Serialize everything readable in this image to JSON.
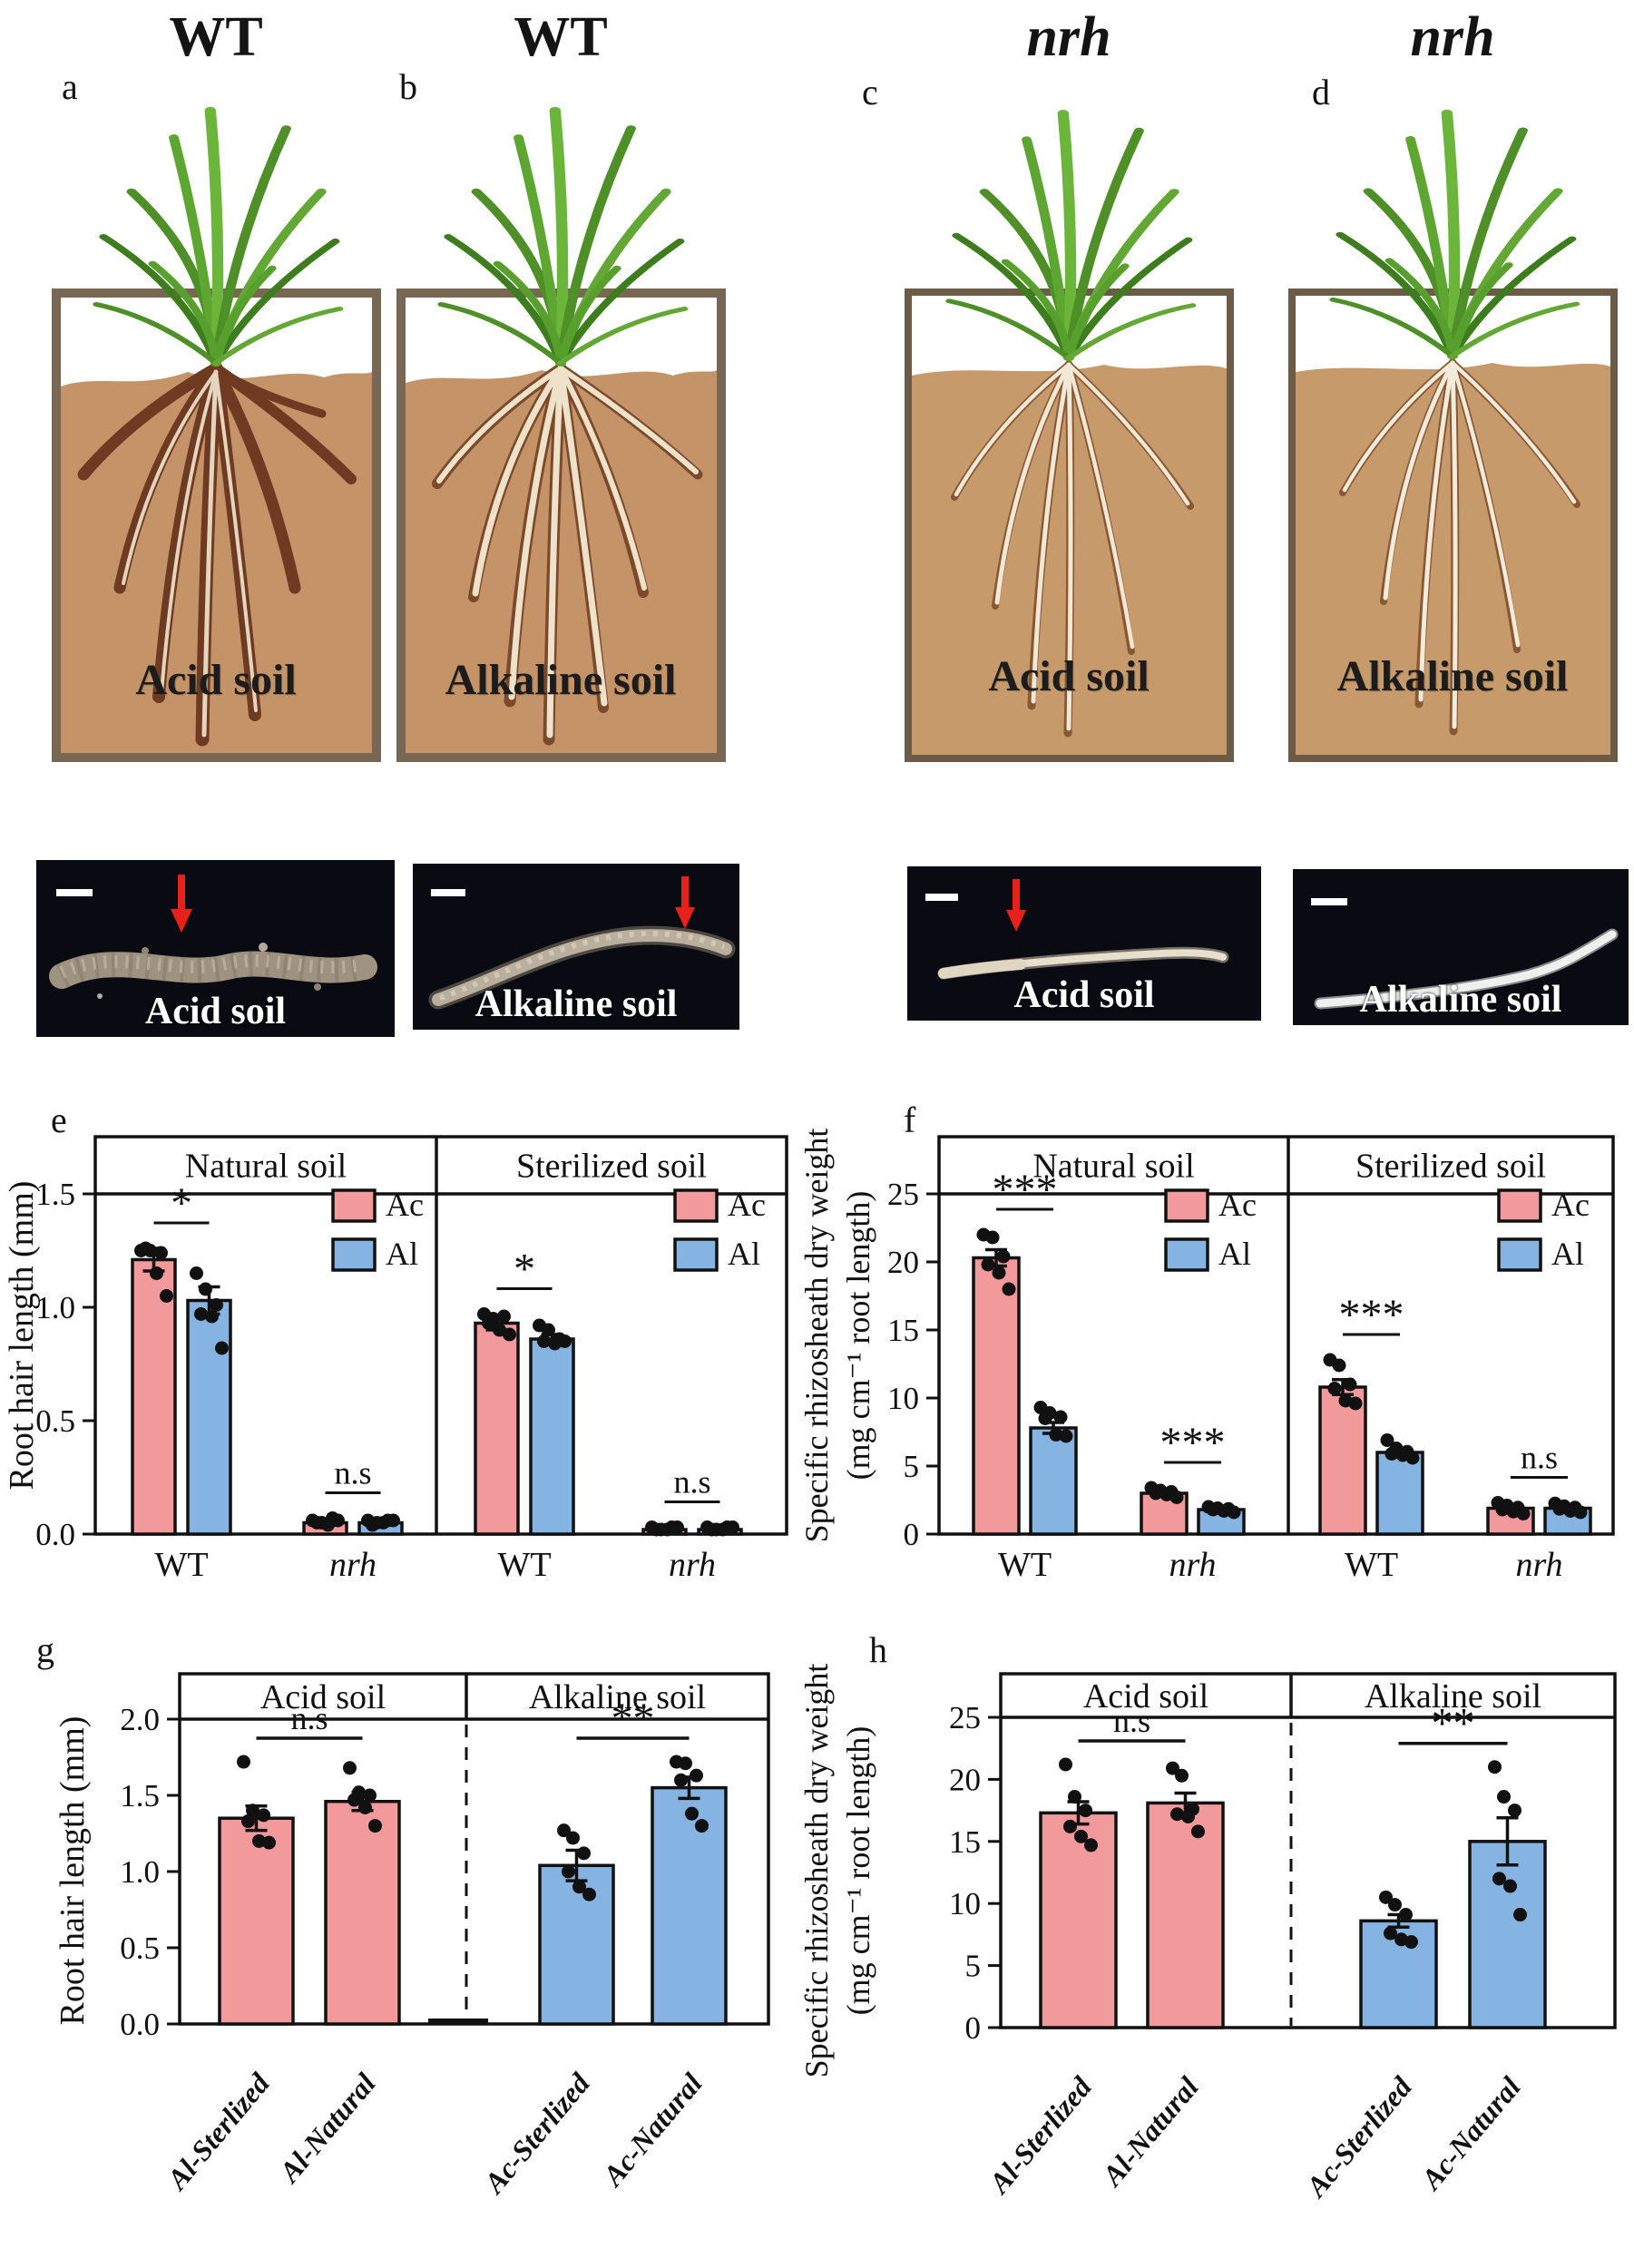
{
  "top_panels": [
    {
      "letter": "a",
      "title": "WT",
      "title_italic": false,
      "box_label": "Acid soil",
      "photo_label": "Acid soil",
      "has_arrow": true
    },
    {
      "letter": "b",
      "title": "WT",
      "title_italic": false,
      "box_label": "Alkaline soil",
      "photo_label": "Alkaline soil",
      "has_arrow": true
    },
    {
      "letter": "c",
      "title": "nrh",
      "title_italic": true,
      "box_label": "Acid soil",
      "photo_label": "Acid soil",
      "has_arrow": true
    },
    {
      "letter": "d",
      "title": "nrh",
      "title_italic": true,
      "box_label": "Alkaline soil",
      "photo_label": "Alkaline soil",
      "has_arrow": false
    }
  ],
  "colors": {
    "ac_pink": "#F2999C",
    "al_blue": "#85B4E2",
    "soil_fill": "#C49468",
    "soil_fill_cd": "#C79A6C",
    "soil_border": "#786853",
    "soil_border_cd": "#6B5B47",
    "photo_background": "#0a0a13",
    "arrow_red": "#E8211D",
    "bar_outline": "#111111"
  },
  "chart_data": [
    {
      "id": "e",
      "panel_letter": "e",
      "type": "bar",
      "ylabel_lines": [
        "Root hair length (mm)"
      ],
      "yticks": [
        {
          "v": 0,
          "label": "0.0"
        },
        {
          "v": 0.5,
          "label": "0.5"
        },
        {
          "v": 1.0,
          "label": "1.0"
        },
        {
          "v": 1.5,
          "label": "1.5"
        }
      ],
      "ylim": [
        0,
        1.75
      ],
      "legend": {
        "items": [
          {
            "label": "Ac",
            "color": "#F2999C"
          },
          {
            "label": "Al",
            "color": "#85B4E2"
          }
        ]
      },
      "panels": [
        {
          "header": "Natural soil",
          "groups": [
            {
              "category": "WT",
              "italic": false,
              "significance": "*",
              "bars": [
                {
                  "series": "Ac",
                  "color": "#F2999C",
                  "value": 1.21,
                  "sem": 0.05,
                  "points": [
                    1.25,
                    1.25,
                    1.24,
                    1.26,
                    1.15,
                    1.05
                  ]
                },
                {
                  "series": "Al",
                  "color": "#85B4E2",
                  "value": 1.03,
                  "sem": 0.06,
                  "points": [
                    1.15,
                    1.08,
                    1.01,
                    0.97,
                    0.96,
                    0.82
                  ]
                }
              ]
            },
            {
              "category": "nrh",
              "italic": true,
              "significance": "n.s",
              "bars": [
                {
                  "series": "Ac",
                  "color": "#F2999C",
                  "value": 0.05,
                  "sem": 0.01,
                  "points": [
                    0.06,
                    0.05,
                    0.07,
                    0.05,
                    0.04,
                    0.06
                  ]
                },
                {
                  "series": "Al",
                  "color": "#85B4E2",
                  "value": 0.05,
                  "sem": 0.01,
                  "points": [
                    0.06,
                    0.05,
                    0.06,
                    0.04,
                    0.05,
                    0.06
                  ]
                }
              ]
            }
          ]
        },
        {
          "header": "Sterilized soil",
          "groups": [
            {
              "category": "WT",
              "italic": false,
              "significance": "*",
              "bars": [
                {
                  "series": "Ac",
                  "color": "#F2999C",
                  "value": 0.93,
                  "sem": 0.03,
                  "points": [
                    0.97,
                    0.95,
                    0.96,
                    0.93,
                    0.9,
                    0.88
                  ]
                },
                {
                  "series": "Al",
                  "color": "#85B4E2",
                  "value": 0.86,
                  "sem": 0.02,
                  "points": [
                    0.92,
                    0.9,
                    0.86,
                    0.85,
                    0.84,
                    0.85
                  ]
                }
              ]
            },
            {
              "category": "nrh",
              "italic": true,
              "significance": "n.s",
              "bars": [
                {
                  "series": "Ac",
                  "color": "#F2999C",
                  "value": 0.02,
                  "sem": 0.005,
                  "points": [
                    0.03,
                    0.02,
                    0.03,
                    0.02,
                    0.02,
                    0.03
                  ]
                },
                {
                  "series": "Al",
                  "color": "#85B4E2",
                  "value": 0.02,
                  "sem": 0.005,
                  "points": [
                    0.03,
                    0.02,
                    0.03,
                    0.02,
                    0.02,
                    0.03
                  ]
                }
              ]
            }
          ]
        }
      ]
    },
    {
      "id": "f",
      "panel_letter": "f",
      "type": "bar",
      "ylabel_lines": [
        "Specific rhizosheath dry weight",
        "(mg cm⁻¹ root length)"
      ],
      "yticks": [
        {
          "v": 0,
          "label": "0"
        },
        {
          "v": 5,
          "label": "5"
        },
        {
          "v": 10,
          "label": "10"
        },
        {
          "v": 15,
          "label": "15"
        },
        {
          "v": 20,
          "label": "20"
        },
        {
          "v": 25,
          "label": "25"
        }
      ],
      "ylim": [
        0,
        29
      ],
      "legend": {
        "items": [
          {
            "label": "Ac",
            "color": "#F2999C"
          },
          {
            "label": "Al",
            "color": "#85B4E2"
          }
        ]
      },
      "panels": [
        {
          "header": "Natural soil",
          "groups": [
            {
              "category": "WT",
              "italic": false,
              "significance": "***",
              "bars": [
                {
                  "series": "Ac",
                  "color": "#F2999C",
                  "value": 20.3,
                  "sem": 0.6,
                  "points": [
                    22.0,
                    21.8,
                    20.4,
                    19.8,
                    19.2,
                    18.0
                  ]
                },
                {
                  "series": "Al",
                  "color": "#85B4E2",
                  "value": 7.8,
                  "sem": 0.4,
                  "points": [
                    9.3,
                    8.9,
                    8.6,
                    8.5,
                    7.3,
                    7.2
                  ]
                }
              ]
            },
            {
              "category": "nrh",
              "italic": true,
              "significance": "***",
              "bars": [
                {
                  "series": "Ac",
                  "color": "#F2999C",
                  "value": 3.0,
                  "sem": 0.12,
                  "points": [
                    3.4,
                    3.2,
                    3.1,
                    3.0,
                    2.9,
                    2.7
                  ]
                },
                {
                  "series": "Al",
                  "color": "#85B4E2",
                  "value": 1.8,
                  "sem": 0.08,
                  "points": [
                    2.0,
                    1.9,
                    1.85,
                    1.8,
                    1.7,
                    1.6
                  ]
                }
              ]
            }
          ]
        },
        {
          "header": "Sterilized soil",
          "groups": [
            {
              "category": "WT",
              "italic": false,
              "significance": "***",
              "bars": [
                {
                  "series": "Ac",
                  "color": "#F2999C",
                  "value": 10.8,
                  "sem": 0.55,
                  "points": [
                    12.8,
                    12.4,
                    11.0,
                    10.7,
                    9.8,
                    9.6
                  ]
                },
                {
                  "series": "Al",
                  "color": "#85B4E2",
                  "value": 6.0,
                  "sem": 0.2,
                  "points": [
                    6.9,
                    6.3,
                    6.05,
                    5.9,
                    5.8,
                    5.6
                  ]
                }
              ]
            },
            {
              "category": "nrh",
              "italic": true,
              "significance": "n.s",
              "bars": [
                {
                  "series": "Ac",
                  "color": "#F2999C",
                  "value": 1.9,
                  "sem": 0.12,
                  "points": [
                    2.3,
                    2.1,
                    1.95,
                    1.8,
                    1.65,
                    1.5
                  ]
                },
                {
                  "series": "Al",
                  "color": "#85B4E2",
                  "value": 1.9,
                  "sem": 0.1,
                  "points": [
                    2.25,
                    2.05,
                    1.95,
                    1.85,
                    1.7,
                    1.6
                  ]
                }
              ]
            }
          ]
        }
      ]
    },
    {
      "id": "g",
      "panel_letter": "g",
      "type": "bar",
      "ylabel_lines": [
        "Root hair length (mm)"
      ],
      "yticks": [
        {
          "v": 0,
          "label": "0.0"
        },
        {
          "v": 0.5,
          "label": "0.5"
        },
        {
          "v": 1.0,
          "label": "1.0"
        },
        {
          "v": 1.5,
          "label": "1.5"
        },
        {
          "v": 2.0,
          "label": "2.0"
        }
      ],
      "ylim": [
        0,
        2.3
      ],
      "legend": null,
      "panels": [
        {
          "header": "Acid soil",
          "significance": "n.s",
          "groups": [
            {
              "category": "Al-Sterlized",
              "italic": true,
              "bars": [
                {
                  "series": "Ac",
                  "color": "#F2999C",
                  "value": 1.35,
                  "sem": 0.08,
                  "points": [
                    1.72,
                    1.4,
                    1.37,
                    1.33,
                    1.2,
                    1.19
                  ]
                }
              ]
            },
            {
              "category": "Al-Natural",
              "italic": true,
              "bars": [
                {
                  "series": "Ac",
                  "color": "#F2999C",
                  "value": 1.46,
                  "sem": 0.06,
                  "points": [
                    1.68,
                    1.52,
                    1.5,
                    1.47,
                    1.42,
                    1.3
                  ]
                }
              ]
            }
          ]
        },
        {
          "header": "Alkaline soil",
          "significance": "**",
          "groups": [
            {
              "category": "Ac-Sterlized",
              "italic": true,
              "bars": [
                {
                  "series": "Al",
                  "color": "#85B4E2",
                  "value": 1.04,
                  "sem": 0.1,
                  "points": [
                    1.27,
                    1.22,
                    1.12,
                    1.0,
                    0.9,
                    0.85
                  ]
                }
              ]
            },
            {
              "category": "Ac-Natural",
              "italic": true,
              "bars": [
                {
                  "series": "Al",
                  "color": "#85B4E2",
                  "value": 1.55,
                  "sem": 0.07,
                  "points": [
                    1.72,
                    1.71,
                    1.63,
                    1.6,
                    1.38,
                    1.3
                  ]
                }
              ]
            }
          ]
        }
      ]
    },
    {
      "id": "h",
      "panel_letter": "h",
      "type": "bar",
      "ylabel_lines": [
        "Specific rhizosheath dry weight",
        "(mg cm⁻¹ root length)"
      ],
      "yticks": [
        {
          "v": 0,
          "label": "0"
        },
        {
          "v": 5,
          "label": "5"
        },
        {
          "v": 10,
          "label": "10"
        },
        {
          "v": 15,
          "label": "15"
        },
        {
          "v": 20,
          "label": "20"
        },
        {
          "v": 25,
          "label": "25"
        }
      ],
      "ylim": [
        0,
        27.5
      ],
      "legend": null,
      "panels": [
        {
          "header": "Acid soil",
          "significance": "n.s",
          "groups": [
            {
              "category": "Al-Sterlized",
              "italic": true,
              "bars": [
                {
                  "series": "Ac",
                  "color": "#F2999C",
                  "value": 17.3,
                  "sem": 0.9,
                  "points": [
                    21.2,
                    18.6,
                    17.5,
                    16.2,
                    15.4,
                    14.7
                  ]
                }
              ]
            },
            {
              "category": "Al-Natural",
              "italic": true,
              "bars": [
                {
                  "series": "Ac",
                  "color": "#F2999C",
                  "value": 18.1,
                  "sem": 0.8,
                  "points": [
                    20.9,
                    20.3,
                    17.6,
                    17.2,
                    17.0,
                    15.8
                  ]
                }
              ]
            }
          ]
        },
        {
          "header": "Alkaline soil",
          "significance": "**",
          "groups": [
            {
              "category": "Ac-Sterlized",
              "italic": true,
              "bars": [
                {
                  "series": "Al",
                  "color": "#85B4E2",
                  "value": 8.6,
                  "sem": 0.5,
                  "points": [
                    10.5,
                    9.9,
                    9.1,
                    7.6,
                    7.1,
                    6.9
                  ]
                }
              ]
            },
            {
              "category": "Ac-Natural",
              "italic": true,
              "bars": [
                {
                  "series": "Al",
                  "color": "#85B4E2",
                  "value": 15.0,
                  "sem": 1.9,
                  "points": [
                    21.0,
                    18.6,
                    17.5,
                    12.0,
                    11.4,
                    9.1
                  ]
                }
              ]
            }
          ]
        }
      ]
    }
  ]
}
